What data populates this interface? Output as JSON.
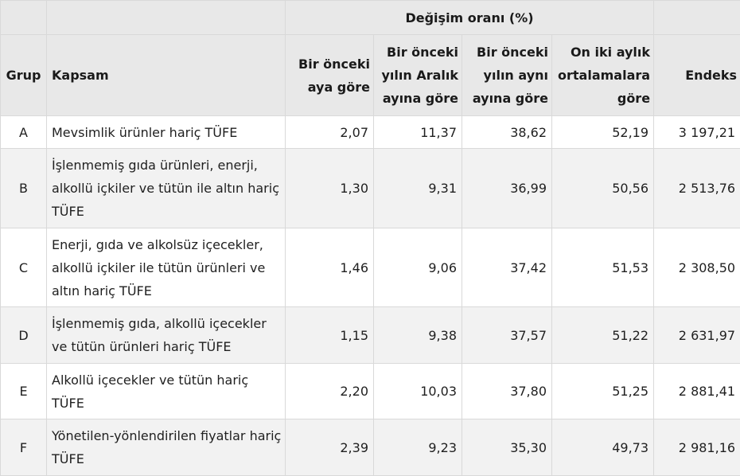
{
  "table": {
    "group_header": "Değişim oranı (%)",
    "headers": {
      "grup": "Grup",
      "kapsam": "Kapsam",
      "aylik": "Bir önceki aya göre",
      "aralik": "Bir önceki yılın Aralık ayına göre",
      "yillik": "Bir önceki yılın aynı ayına göre",
      "ortalama": "On iki aylık ortalamalara göre",
      "endeks": "Endeks"
    },
    "rows": [
      {
        "grup": "A",
        "kapsam": "Mevsimlik ürünler hariç TÜFE",
        "aylik": "2,07",
        "aralik": "11,37",
        "yillik": "38,62",
        "ortalama": "52,19",
        "endeks": "3 197,21"
      },
      {
        "grup": "B",
        "kapsam": "İşlenmemiş gıda ürünleri, enerji, alkollü içkiler ve tütün ile altın hariç TÜFE",
        "aylik": "1,30",
        "aralik": "9,31",
        "yillik": "36,99",
        "ortalama": "50,56",
        "endeks": "2 513,76"
      },
      {
        "grup": "C",
        "kapsam": "Enerji, gıda ve alkolsüz içecekler, alkollü içkiler ile tütün ürünleri ve altın hariç TÜFE",
        "aylik": "1,46",
        "aralik": "9,06",
        "yillik": "37,42",
        "ortalama": "51,53",
        "endeks": "2 308,50"
      },
      {
        "grup": "D",
        "kapsam": "İşlenmemiş gıda, alkollü içecekler ve tütün ürünleri hariç TÜFE",
        "aylik": "1,15",
        "aralik": "9,38",
        "yillik": "37,57",
        "ortalama": "51,22",
        "endeks": "2 631,97"
      },
      {
        "grup": "E",
        "kapsam": "Alkollü içecekler ve tütün hariç TÜFE",
        "aylik": "2,20",
        "aralik": "10,03",
        "yillik": "37,80",
        "ortalama": "51,25",
        "endeks": "2 881,41"
      },
      {
        "grup": "F",
        "kapsam": "Yönetilen-yönlendirilen fiyatlar hariç TÜFE",
        "aylik": "2,39",
        "aralik": "9,23",
        "yillik": "35,30",
        "ortalama": "49,73",
        "endeks": "2 981,16"
      }
    ]
  }
}
